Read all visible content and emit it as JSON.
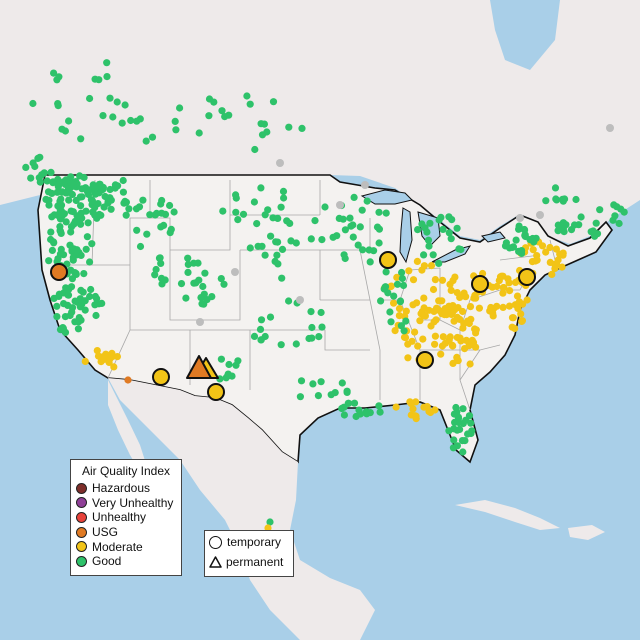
{
  "colors": {
    "water": "#a9cfe8",
    "land_other": "#eeeaea",
    "land_us": "#f4f2f0",
    "border": "#111111",
    "state_line": "#a8a8a8",
    "no_data": "#bdbdbd",
    "hazardous": "#7e2e2a",
    "very_unhealthy": "#8f3f97",
    "unhealthy": "#e8423a",
    "usg": "#e07a23",
    "moderate": "#f2c417",
    "good": "#2ec26a"
  },
  "legend": {
    "title": "Air Quality Index",
    "items": [
      {
        "label": "Hazardous",
        "color": "#7e2e2a"
      },
      {
        "label": "Very Unhealthy",
        "color": "#8f3f97"
      },
      {
        "label": "Unhealthy",
        "color": "#e8423a"
      },
      {
        "label": "USG",
        "color": "#e07a23"
      },
      {
        "label": "Moderate",
        "color": "#f2c417"
      },
      {
        "label": "Good",
        "color": "#2ec26a"
      }
    ]
  },
  "monitor_types": {
    "temporary": "temporary",
    "permanent": "permanent"
  }
}
